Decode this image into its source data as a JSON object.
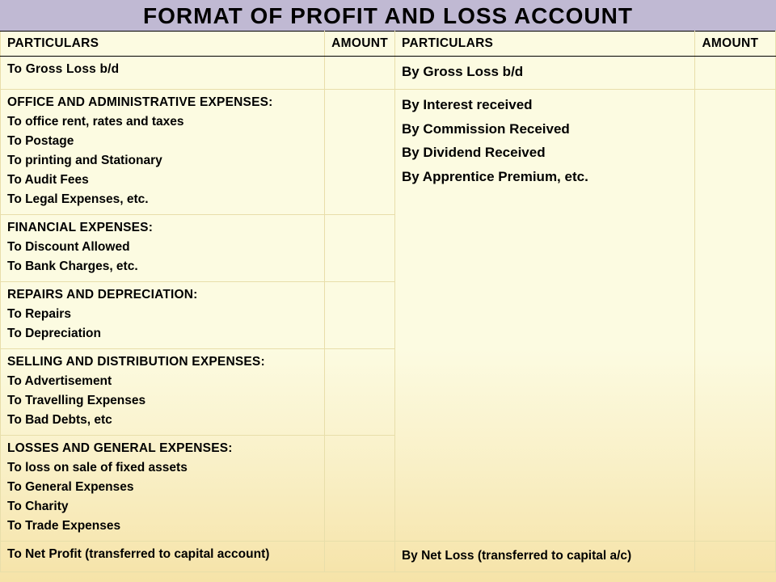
{
  "title": "FORMAT OF PROFIT AND LOSS  ACCOUNT",
  "colors": {
    "title_bg": "#c0b9d3",
    "body_bg_top": "#fcfbe1",
    "body_bg_bottom": "#f6e3a8",
    "cell_border": "#e8deaa",
    "hard_border": "#000000",
    "text": "#000000"
  },
  "headers": {
    "left_particulars": "PARTICULARS",
    "left_amount": "AMOUNT",
    "right_particulars": "PARTICULARS",
    "right_amount": "AMOUNT"
  },
  "left_side": {
    "row0": {
      "line0": "To Gross Loss b/d"
    },
    "section1": {
      "heading": "OFFICE AND ADMINISTRATIVE EXPENSES:",
      "items": [
        "To office rent, rates and taxes",
        "To Postage",
        "To printing and Stationary",
        "To Audit Fees",
        "To Legal Expenses, etc."
      ]
    },
    "section2": {
      "heading": "FINANCIAL EXPENSES:",
      "items": [
        "To Discount Allowed",
        "To Bank Charges, etc."
      ]
    },
    "section3": {
      "heading": "REPAIRS AND DEPRECIATION:",
      "items": [
        "To Repairs",
        "To Depreciation"
      ]
    },
    "section4": {
      "heading": "SELLING AND DISTRIBUTION EXPENSES:",
      "items": [
        "To Advertisement",
        "To Travelling Expenses",
        "To Bad Debts, etc"
      ]
    },
    "section5": {
      "heading": "LOSSES AND GENERAL EXPENSES:",
      "items": [
        "To loss on sale of fixed assets",
        "To General Expenses",
        "To Charity",
        "To Trade Expenses"
      ]
    },
    "bottom": "To Net Profit (transferred to capital account)"
  },
  "right_side": {
    "row0": "By Gross Loss b/d",
    "incomes": [
      "By Interest received",
      "By Commission Received",
      "By Dividend Received",
      "By Apprentice Premium, etc."
    ],
    "bottom": "By Net Loss (transferred to capital a/c)"
  }
}
